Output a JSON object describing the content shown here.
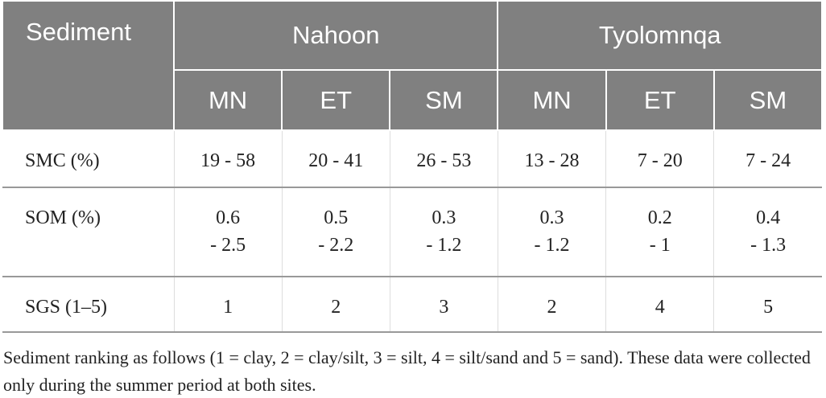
{
  "table": {
    "header": {
      "corner": "Sediment",
      "groups": [
        "Nahoon",
        "Tyolomnqa"
      ],
      "columns": [
        "MN",
        "ET",
        "SM",
        "MN",
        "ET",
        "SM"
      ]
    },
    "rows": [
      [
        "SMC (%)",
        "19 - 58",
        "20 - 41",
        "26 - 53",
        "13 - 28",
        "7 - 20",
        "7 - 24"
      ],
      [
        "SOM (%)",
        "0.6\n- 2.5",
        "0.5\n- 2.2",
        "0.3\n- 1.2",
        "0.3\n- 1.2",
        "0.2\n- 1",
        "0.4\n- 1.3"
      ],
      [
        "SGS (1–5)",
        "1",
        "2",
        "3",
        "2",
        "4",
        "5"
      ]
    ],
    "footnote": "Sediment ranking as follows (1 = clay, 2 = clay/silt, 3 = silt, 4 = silt/sand and 5 = sand). These data were collected only during the summer period at both sites."
  }
}
